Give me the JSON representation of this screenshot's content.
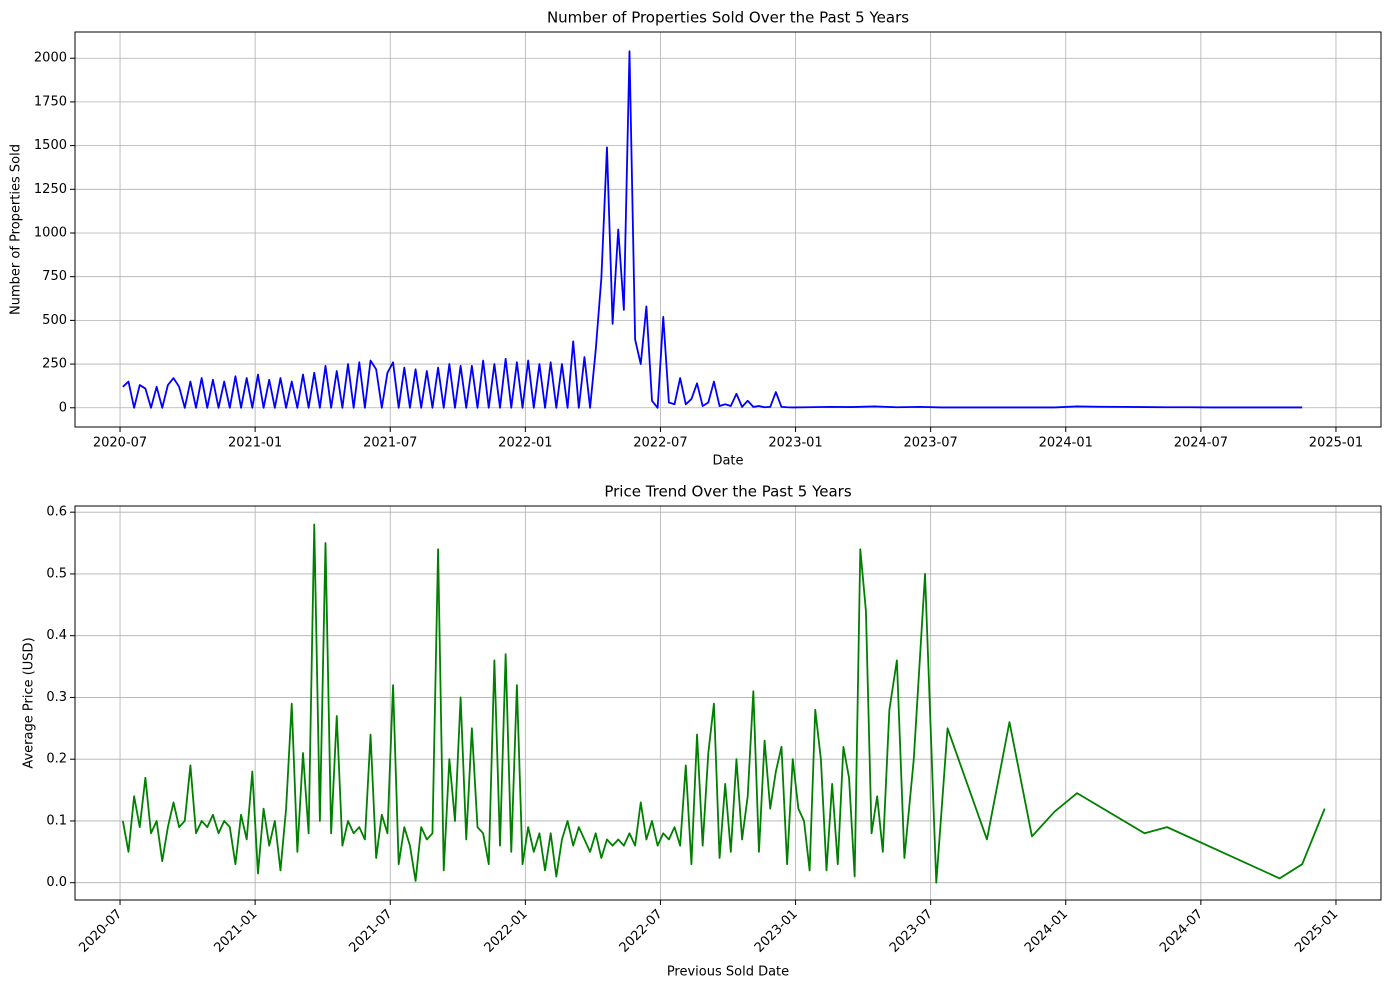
{
  "chart_data": [
    {
      "type": "line",
      "title": "Number of Properties Sold Over the Past 5 Years",
      "xlabel": "Date",
      "ylabel": "Number of Properties Sold",
      "color": "#0000ff",
      "grid": true,
      "xlim": [
        "2020-05",
        "2025-03"
      ],
      "xticks": [
        "2020-07",
        "2021-01",
        "2021-07",
        "2022-01",
        "2022-07",
        "2023-01",
        "2023-07",
        "2024-01",
        "2024-07",
        "2025-01"
      ],
      "ylim": [
        -110,
        2150
      ],
      "yticks": [
        0,
        250,
        500,
        750,
        1000,
        1250,
        1500,
        1750,
        2000
      ],
      "x": [
        "2020-07",
        "2020-07",
        "2020-07",
        "2020-07",
        "2020-08",
        "2020-08",
        "2020-08",
        "2020-08",
        "2020-09",
        "2020-09",
        "2020-09",
        "2020-09",
        "2020-10",
        "2020-10",
        "2020-10",
        "2020-10",
        "2020-11",
        "2020-11",
        "2020-11",
        "2020-11",
        "2020-12",
        "2020-12",
        "2020-12",
        "2020-12",
        "2021-01",
        "2021-01",
        "2021-01",
        "2021-01",
        "2021-02",
        "2021-02",
        "2021-02",
        "2021-02",
        "2021-03",
        "2021-03",
        "2021-03",
        "2021-03",
        "2021-04",
        "2021-04",
        "2021-04",
        "2021-04",
        "2021-05",
        "2021-05",
        "2021-05",
        "2021-05",
        "2021-06",
        "2021-06",
        "2021-06",
        "2021-06",
        "2021-07",
        "2021-07",
        "2021-07",
        "2021-07",
        "2021-08",
        "2021-08",
        "2021-08",
        "2021-08",
        "2021-09",
        "2021-09",
        "2021-09",
        "2021-09",
        "2021-10",
        "2021-10",
        "2021-10",
        "2021-10",
        "2021-11",
        "2021-11",
        "2021-11",
        "2021-11",
        "2021-12",
        "2021-12",
        "2021-12",
        "2021-12",
        "2022-01",
        "2022-01",
        "2022-01",
        "2022-01",
        "2022-02",
        "2022-02",
        "2022-02",
        "2022-02",
        "2022-03",
        "2022-03",
        "2022-03",
        "2022-03",
        "2022-04",
        "2022-04",
        "2022-04",
        "2022-04",
        "2022-05",
        "2022-05",
        "2022-05",
        "2022-05",
        "2022-06",
        "2022-06",
        "2022-06",
        "2022-06",
        "2022-07",
        "2022-07",
        "2022-07",
        "2022-07",
        "2022-08",
        "2022-08",
        "2022-08",
        "2022-08",
        "2022-09",
        "2022-09",
        "2022-09",
        "2022-09",
        "2022-10",
        "2022-10",
        "2022-10",
        "2022-10",
        "2022-11",
        "2022-11",
        "2022-11",
        "2022-11",
        "2022-12",
        "2022-12",
        "2022-12",
        "2022-12",
        "2023-01",
        "2023-02",
        "2023-03",
        "2023-04",
        "2023-05",
        "2023-06",
        "2023-07",
        "2023-08",
        "2023-09",
        "2023-10",
        "2023-11",
        "2023-12",
        "2024-01",
        "2024-02",
        "2024-03",
        "2024-04",
        "2024-05",
        "2024-06",
        "2024-07",
        "2024-08",
        "2024-09",
        "2024-10",
        "2024-11"
      ],
      "values": [
        120,
        150,
        0,
        130,
        110,
        0,
        120,
        0,
        130,
        170,
        120,
        0,
        150,
        0,
        170,
        0,
        160,
        0,
        150,
        0,
        180,
        0,
        170,
        0,
        190,
        0,
        160,
        0,
        170,
        0,
        150,
        0,
        190,
        0,
        200,
        0,
        240,
        0,
        210,
        0,
        250,
        0,
        260,
        0,
        270,
        220,
        0,
        200,
        260,
        0,
        230,
        0,
        220,
        0,
        210,
        0,
        230,
        0,
        250,
        0,
        240,
        0,
        240,
        0,
        270,
        0,
        250,
        0,
        280,
        0,
        260,
        0,
        270,
        0,
        250,
        0,
        260,
        0,
        250,
        0,
        380,
        0,
        290,
        0,
        330,
        740,
        1490,
        480,
        1020,
        560,
        2040,
        390,
        250,
        580,
        40,
        0,
        520,
        30,
        20,
        170,
        20,
        50,
        140,
        10,
        30,
        150,
        10,
        20,
        10,
        80,
        5,
        40,
        5,
        10,
        3,
        5,
        90,
        5,
        3,
        2,
        3,
        5,
        4,
        8,
        3,
        5,
        2,
        2,
        2,
        2,
        2,
        2,
        8,
        6,
        5,
        4,
        3,
        3,
        2,
        2,
        2,
        2,
        2
      ]
    },
    {
      "type": "line",
      "title": "Price Trend Over the Past 5 Years",
      "xlabel": "Previous Sold Date",
      "ylabel": "Average Price (USD)",
      "color": "#008000",
      "grid": true,
      "xlim": [
        "2020-05",
        "2025-03"
      ],
      "xticks": [
        "2020-07",
        "2021-01",
        "2021-07",
        "2022-01",
        "2022-07",
        "2023-01",
        "2023-07",
        "2024-01",
        "2024-07",
        "2025-01"
      ],
      "ylim": [
        -0.028,
        0.61
      ],
      "yticks": [
        {
          "value": 0,
          "label": "0.0"
        },
        0.1,
        0.2,
        0.3,
        0.4,
        0.5,
        0.6
      ],
      "x": [
        "2020-07",
        "2020-07",
        "2020-07",
        "2020-07",
        "2020-08",
        "2020-08",
        "2020-08",
        "2020-08",
        "2020-09",
        "2020-09",
        "2020-09",
        "2020-09",
        "2020-10",
        "2020-10",
        "2020-10",
        "2020-10",
        "2020-11",
        "2020-11",
        "2020-11",
        "2020-11",
        "2020-12",
        "2020-12",
        "2020-12",
        "2020-12",
        "2021-01",
        "2021-01",
        "2021-01",
        "2021-01",
        "2021-02",
        "2021-02",
        "2021-02",
        "2021-02",
        "2021-03",
        "2021-03",
        "2021-03",
        "2021-03",
        "2021-04",
        "2021-04",
        "2021-04",
        "2021-04",
        "2021-05",
        "2021-05",
        "2021-05",
        "2021-05",
        "2021-06",
        "2021-06",
        "2021-06",
        "2021-06",
        "2021-07",
        "2021-07",
        "2021-07",
        "2021-07",
        "2021-08",
        "2021-08",
        "2021-08",
        "2021-08",
        "2021-09",
        "2021-09",
        "2021-09",
        "2021-09",
        "2021-10",
        "2021-10",
        "2021-10",
        "2021-10",
        "2021-11",
        "2021-11",
        "2021-11",
        "2021-11",
        "2021-12",
        "2021-12",
        "2021-12",
        "2021-12",
        "2022-01",
        "2022-01",
        "2022-01",
        "2022-01",
        "2022-02",
        "2022-02",
        "2022-02",
        "2022-02",
        "2022-03",
        "2022-03",
        "2022-03",
        "2022-03",
        "2022-04",
        "2022-04",
        "2022-04",
        "2022-04",
        "2022-05",
        "2022-05",
        "2022-05",
        "2022-05",
        "2022-06",
        "2022-06",
        "2022-06",
        "2022-06",
        "2022-07",
        "2022-07",
        "2022-07",
        "2022-07",
        "2022-08",
        "2022-08",
        "2022-08",
        "2022-08",
        "2022-09",
        "2022-09",
        "2022-09",
        "2022-09",
        "2022-10",
        "2022-10",
        "2022-10",
        "2022-10",
        "2022-11",
        "2022-11",
        "2022-11",
        "2022-11",
        "2022-12",
        "2022-12",
        "2022-12",
        "2022-12",
        "2023-01",
        "2023-01",
        "2023-01",
        "2023-01",
        "2023-02",
        "2023-02",
        "2023-02",
        "2023-02",
        "2023-03",
        "2023-03",
        "2023-03",
        "2023-03",
        "2023-04",
        "2023-04",
        "2023-04",
        "2023-04",
        "2023-05",
        "2023-05",
        "2023-05",
        "2023-06",
        "2023-06",
        "2023-07",
        "2023-07",
        "2023-09",
        "2023-10",
        "2023-11",
        "2023-12",
        "2024-01",
        "2024-04",
        "2024-05",
        "2024-10",
        "2024-11",
        "2024-12"
      ],
      "values": [
        0.1,
        0.05,
        0.14,
        0.09,
        0.17,
        0.08,
        0.1,
        0.035,
        0.09,
        0.13,
        0.09,
        0.1,
        0.19,
        0.08,
        0.1,
        0.09,
        0.11,
        0.08,
        0.1,
        0.09,
        0.03,
        0.11,
        0.07,
        0.18,
        0.015,
        0.12,
        0.06,
        0.1,
        0.02,
        0.12,
        0.29,
        0.05,
        0.21,
        0.08,
        0.58,
        0.1,
        0.55,
        0.08,
        0.27,
        0.06,
        0.1,
        0.08,
        0.09,
        0.07,
        0.24,
        0.04,
        0.11,
        0.08,
        0.32,
        0.03,
        0.09,
        0.06,
        0.003,
        0.09,
        0.07,
        0.08,
        0.54,
        0.02,
        0.2,
        0.1,
        0.3,
        0.07,
        0.25,
        0.09,
        0.08,
        0.03,
        0.36,
        0.06,
        0.37,
        0.05,
        0.32,
        0.03,
        0.09,
        0.05,
        0.08,
        0.02,
        0.08,
        0.01,
        0.07,
        0.1,
        0.06,
        0.09,
        0.07,
        0.05,
        0.08,
        0.04,
        0.07,
        0.06,
        0.07,
        0.06,
        0.08,
        0.06,
        0.13,
        0.07,
        0.1,
        0.06,
        0.08,
        0.07,
        0.09,
        0.06,
        0.19,
        0.03,
        0.24,
        0.06,
        0.21,
        0.29,
        0.04,
        0.16,
        0.05,
        0.2,
        0.07,
        0.14,
        0.31,
        0.05,
        0.23,
        0.12,
        0.18,
        0.22,
        0.03,
        0.2,
        0.12,
        0.1,
        0.02,
        0.28,
        0.2,
        0.02,
        0.16,
        0.03,
        0.22,
        0.17,
        0.01,
        0.54,
        0.44,
        0.08,
        0.14,
        0.05,
        0.28,
        0.36,
        0.04,
        0.2,
        0.5,
        0,
        0.25,
        0.07,
        0.26,
        0.075,
        0.115,
        0.145,
        0.08,
        0.09,
        0.007,
        0.03,
        0.12
      ]
    }
  ]
}
